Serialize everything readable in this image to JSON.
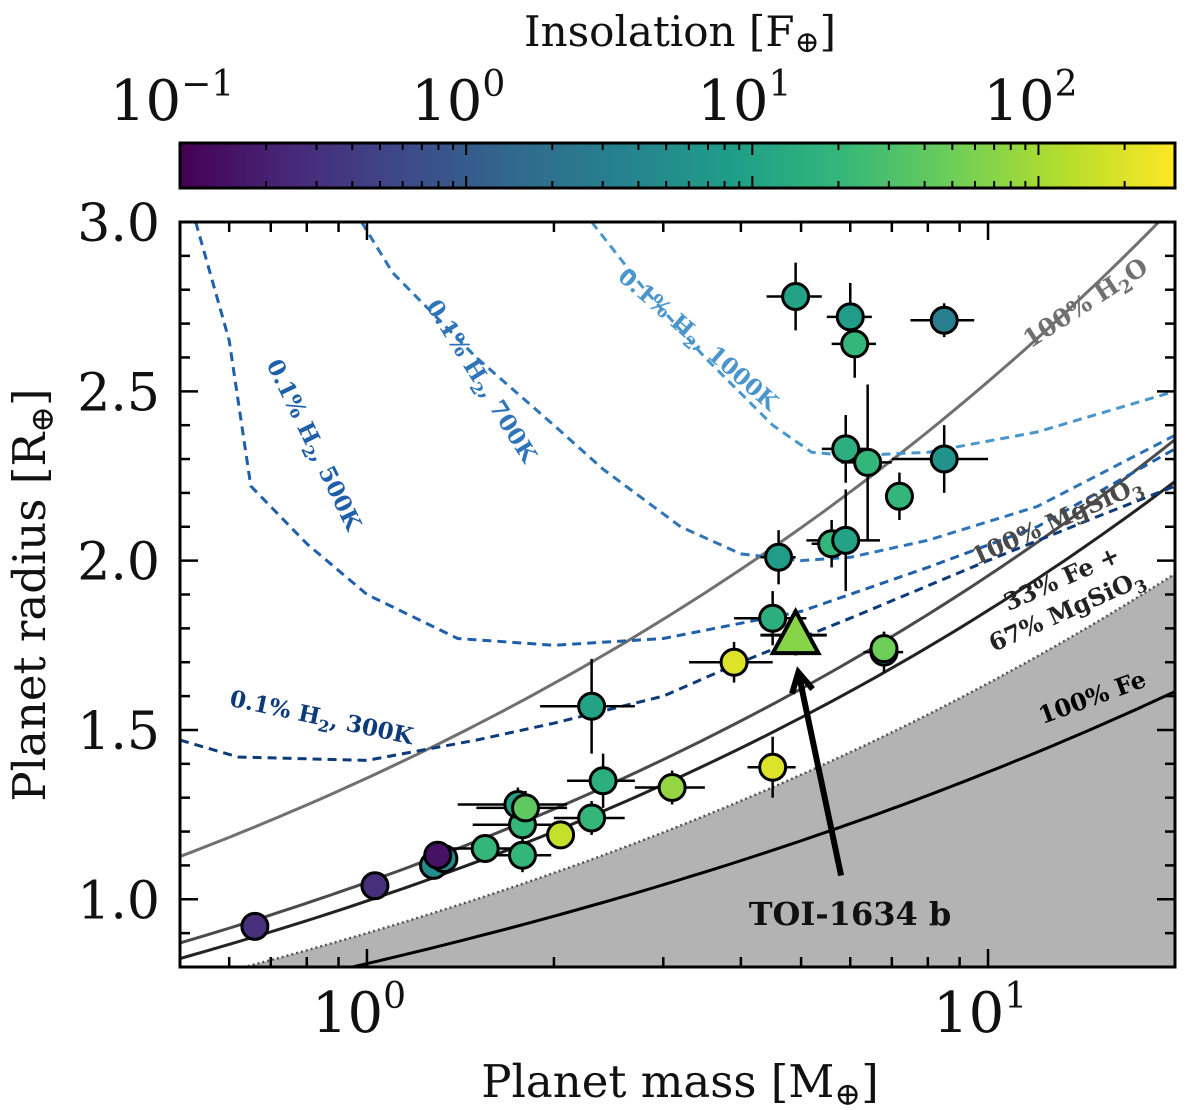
{
  "colorbar": {
    "label": "Insolation [F",
    "label_sub": "⊕",
    "label_close": "]",
    "range": [
      0.1,
      300
    ],
    "ticks": [
      {
        "value": 0.1,
        "base": "10",
        "exp": "−1"
      },
      {
        "value": 1,
        "base": "10",
        "exp": "0"
      },
      {
        "value": 10,
        "base": "10",
        "exp": "1"
      },
      {
        "value": 100,
        "base": "10",
        "exp": "2"
      }
    ],
    "colormap": [
      "#440154",
      "#482878",
      "#3e4989",
      "#31688e",
      "#26828e",
      "#1f9e89",
      "#35b779",
      "#6ece58",
      "#b5de2b",
      "#fde725"
    ]
  },
  "chart_data": {
    "type": "scatter",
    "xscale": "log",
    "xlim": [
      0.5,
      20
    ],
    "ylim": [
      0.8,
      3.0
    ],
    "xlabel": "Planet mass [M",
    "xlabel_sub": "⊕",
    "xlabel_close": "]",
    "ylabel": "Planet radius [R",
    "ylabel_sub": "⊕",
    "ylabel_close": "]",
    "xticks": [
      {
        "value": 1,
        "base": "10",
        "exp": "0"
      },
      {
        "value": 10,
        "base": "10",
        "exp": "1"
      }
    ],
    "yticks": [
      {
        "value": 1.0,
        "label": "1.0"
      },
      {
        "value": 1.5,
        "label": "1.5"
      },
      {
        "value": 2.0,
        "label": "2.0"
      },
      {
        "value": 2.5,
        "label": "2.5"
      },
      {
        "value": 3.0,
        "label": "3.0"
      }
    ],
    "points": [
      {
        "m": 0.66,
        "r": 0.92,
        "xerr": 0,
        "yerr": 0,
        "insol": 0.3
      },
      {
        "m": 1.03,
        "r": 1.04,
        "xerr": 0,
        "yerr": 0,
        "insol": 0.3
      },
      {
        "m": 1.28,
        "r": 1.1,
        "xerr": 0,
        "yerr": 0,
        "insol": 5
      },
      {
        "m": 1.33,
        "r": 1.12,
        "xerr": 0,
        "yerr": 0,
        "insol": 5
      },
      {
        "m": 1.3,
        "r": 1.13,
        "xerr": 0,
        "yerr": 0,
        "insol": 0.15
      },
      {
        "m": 1.55,
        "r": 1.15,
        "xerr": 0.2,
        "yerr": 0.04,
        "insol": 20
      },
      {
        "m": 1.78,
        "r": 1.13,
        "xerr": 0.2,
        "yerr": 0.05,
        "insol": 20
      },
      {
        "m": 1.78,
        "r": 1.22,
        "xerr": 0.3,
        "yerr": 0.05,
        "insol": 20
      },
      {
        "m": 1.75,
        "r": 1.28,
        "xerr": 0.35,
        "yerr": 0.05,
        "insol": 10
      },
      {
        "m": 1.8,
        "r": 1.27,
        "xerr": 0.3,
        "yerr": 0.05,
        "insol": 40
      },
      {
        "m": 2.05,
        "r": 1.19,
        "xerr": 0.1,
        "yerr": 0.04,
        "insol": 150
      },
      {
        "m": 2.3,
        "r": 1.24,
        "xerr": 0.3,
        "yerr": 0.05,
        "insol": 20
      },
      {
        "m": 2.4,
        "r": 1.35,
        "xerr": 0.3,
        "yerr": 0.08,
        "insol": 15
      },
      {
        "m": 2.3,
        "r": 1.57,
        "xerr": 0.4,
        "yerr": 0.14,
        "insol": 10
      },
      {
        "m": 3.1,
        "r": 1.33,
        "xerr": 0.4,
        "yerr": 0.05,
        "insol": 80
      },
      {
        "m": 3.9,
        "r": 1.7,
        "xerr": 0.6,
        "yerr": 0.06,
        "insol": 200
      },
      {
        "m": 4.5,
        "r": 1.39,
        "xerr": 0.4,
        "yerr": 0.09,
        "insol": 200
      },
      {
        "m": 4.5,
        "r": 1.83,
        "xerr": 0.6,
        "yerr": 0.08,
        "insol": 15
      },
      {
        "m": 4.6,
        "r": 2.01,
        "xerr": 0.3,
        "yerr": 0.08,
        "insol": 8
      },
      {
        "m": 4.9,
        "r": 2.78,
        "xerr": 0.5,
        "yerr": 0.1,
        "insol": 10
      },
      {
        "m": 5.6,
        "r": 2.05,
        "xerr": 0.4,
        "yerr": 0.07,
        "insol": 20
      },
      {
        "m": 5.9,
        "r": 2.06,
        "xerr": 0.8,
        "yerr": 0.15,
        "insol": 10
      },
      {
        "m": 5.9,
        "r": 2.33,
        "xerr": 0.5,
        "yerr": 0.1,
        "insol": 15
      },
      {
        "m": 6.0,
        "r": 2.72,
        "xerr": 0.5,
        "yerr": 0.1,
        "insol": 8
      },
      {
        "m": 6.1,
        "r": 2.64,
        "xerr": 0.5,
        "yerr": 0.1,
        "insol": 20
      },
      {
        "m": 6.4,
        "r": 2.29,
        "xerr": 0.6,
        "yerr": 0.23,
        "insol": 20
      },
      {
        "m": 7.2,
        "r": 2.19,
        "xerr": 0.3,
        "yerr": 0.07,
        "insol": 20
      },
      {
        "m": 6.8,
        "r": 1.73,
        "xerr": 0.5,
        "yerr": 0.06,
        "insol": 10
      },
      {
        "m": 6.8,
        "r": 1.74,
        "xerr": 0.3,
        "yerr": 0.05,
        "insol": 50
      },
      {
        "m": 8.5,
        "r": 2.3,
        "xerr": 1.5,
        "yerr": 0.1,
        "insol": 6
      },
      {
        "m": 8.5,
        "r": 2.71,
        "xerr": 1.0,
        "yerr": 0.05,
        "insol": 3
      }
    ],
    "highlight": {
      "name": "TOI-1634 b",
      "m": 4.9,
      "r": 1.78,
      "xerr": 0.6,
      "yerr": 0.06,
      "insol": 70
    },
    "annotation": {
      "text": "TOI-1634 b",
      "from": [
        5.8,
        1.07
      ],
      "to": [
        4.95,
        1.67
      ]
    },
    "curves": [
      {
        "name": "100% H2O",
        "label": "100% H",
        "label_sub": "2",
        "label_tail": "O",
        "color": "#707070",
        "style": "solid",
        "a": 1.358,
        "b": 0.27
      },
      {
        "name": "100% MgSiO3",
        "label": "100% MgSiO",
        "label_sub": "3",
        "label_tail": "",
        "color": "#4a4a4a",
        "style": "solid",
        "a": 1.05,
        "b": 0.27
      },
      {
        "name": "33% Fe + 67% MgSiO3",
        "label": "33% Fe +",
        "label2": "67% MgSiO",
        "label2_sub": "3",
        "color": "#222222",
        "style": "solid",
        "a": 0.995,
        "b": 0.27
      },
      {
        "name": "100% Fe",
        "label": "100% Fe",
        "label_sub": "",
        "label_tail": "",
        "color": "#000000",
        "style": "solid",
        "a": 0.81,
        "b": 0.23
      }
    ],
    "shaded_region": {
      "name": "excluded",
      "a": 0.9,
      "b": 0.26,
      "color": "#b3b3b3"
    },
    "h2_curves": [
      {
        "name": "0.1% H2, 300K",
        "label": "0.1% H",
        "label_sub": "2",
        "label_tail": ", 300K",
        "color": "#0d3b7a",
        "points": [
          [
            0.5,
            1.47
          ],
          [
            0.62,
            1.42
          ],
          [
            1.0,
            1.41
          ],
          [
            1.5,
            1.47
          ],
          [
            2.0,
            1.52
          ],
          [
            3.0,
            1.6
          ],
          [
            4.0,
            1.7
          ],
          [
            6.0,
            1.83
          ],
          [
            10,
            2.0
          ],
          [
            15,
            2.13
          ],
          [
            20,
            2.22
          ]
        ]
      },
      {
        "name": "0.1% H2, 500K",
        "label": "0.1% H",
        "label_sub": "2",
        "label_tail": ", 500K",
        "color": "#1f5ea8",
        "points": [
          [
            0.53,
            3.0
          ],
          [
            0.6,
            2.65
          ],
          [
            0.65,
            2.22
          ],
          [
            0.8,
            2.05
          ],
          [
            1.0,
            1.9
          ],
          [
            1.4,
            1.77
          ],
          [
            2.0,
            1.75
          ],
          [
            3.0,
            1.77
          ],
          [
            5.0,
            1.85
          ],
          [
            8.0,
            1.98
          ],
          [
            12,
            2.1
          ],
          [
            20,
            2.33
          ]
        ]
      },
      {
        "name": "0.1% H2, 700K",
        "label": "0.1% H",
        "label_sub": "2",
        "label_tail": ", 700K",
        "color": "#2e74b8",
        "points": [
          [
            0.98,
            3.0
          ],
          [
            1.1,
            2.85
          ],
          [
            1.5,
            2.6
          ],
          [
            2.0,
            2.4
          ],
          [
            2.4,
            2.27
          ],
          [
            3.2,
            2.1
          ],
          [
            4.0,
            2.02
          ],
          [
            5.0,
            2.0
          ],
          [
            6.0,
            2.01
          ],
          [
            8.0,
            2.06
          ],
          [
            12,
            2.16
          ],
          [
            20,
            2.37
          ]
        ]
      },
      {
        "name": "0.1% H2, 1000K",
        "label": "0.1% H",
        "label_sub": "2",
        "label_tail": ", 1000K",
        "color": "#4a96cc",
        "points": [
          [
            2.3,
            3.0
          ],
          [
            2.8,
            2.8
          ],
          [
            3.5,
            2.6
          ],
          [
            4.5,
            2.4
          ],
          [
            5.2,
            2.32
          ],
          [
            6.0,
            2.31
          ],
          [
            8.0,
            2.32
          ],
          [
            12,
            2.38
          ],
          [
            20,
            2.5
          ]
        ]
      }
    ]
  }
}
